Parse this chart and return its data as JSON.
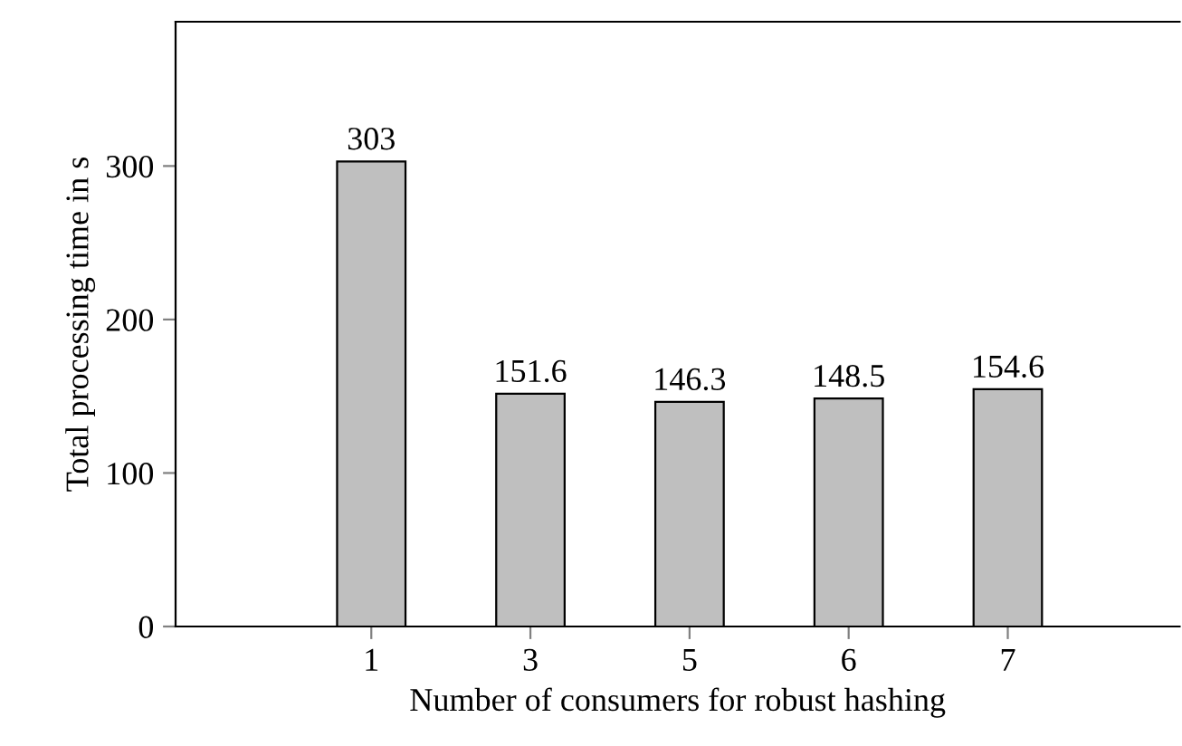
{
  "chart_data": {
    "type": "bar",
    "xlabel": "Number of consumers for robust hashing",
    "ylabel": "Total processing time in s",
    "categories": [
      "1",
      "3",
      "5",
      "6",
      "7"
    ],
    "values": [
      303,
      151.6,
      146.3,
      148.5,
      154.6
    ],
    "color": "#bfbfbf",
    "ylim": [
      0,
      394
    ],
    "yticks": [
      0,
      100,
      200,
      300
    ],
    "grid": false,
    "data_labels": true
  }
}
